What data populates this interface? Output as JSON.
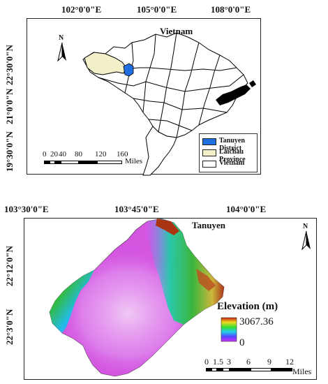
{
  "top_map": {
    "x_ticks": [
      "102°0'0\"E",
      "105°0'0\"E",
      "108°0'0\"E"
    ],
    "y_ticks": [
      "22°30'0\"N",
      "21°0'0\"N",
      "19°30'0\"N"
    ],
    "country_label": "Vietnam",
    "north_label": "N",
    "legend": [
      {
        "label": "Tanuyen District",
        "color": "#1f6fe0"
      },
      {
        "label": "Laichau Province",
        "color": "#f2f0c8"
      },
      {
        "label": "Vietnam",
        "color": "#ffffff"
      }
    ],
    "scale_labels": [
      "0",
      "20",
      "40",
      "80",
      "120",
      "160"
    ],
    "scale_unit": "Miles"
  },
  "bottom_map": {
    "x_ticks": [
      "103°30'0\"E",
      "103°45'0\"E",
      "104°0'0\"E"
    ],
    "y_ticks": [
      "22°12'0\"N",
      "22°3'0\"N"
    ],
    "district_label": "Tanuyen",
    "north_label": "N",
    "elevation": {
      "title": "Elevation (m)",
      "max": "3067.36",
      "min": "0"
    },
    "scale_labels": [
      "0",
      "1.5",
      "3",
      "6",
      "9",
      "12"
    ],
    "scale_unit": "Miles"
  }
}
